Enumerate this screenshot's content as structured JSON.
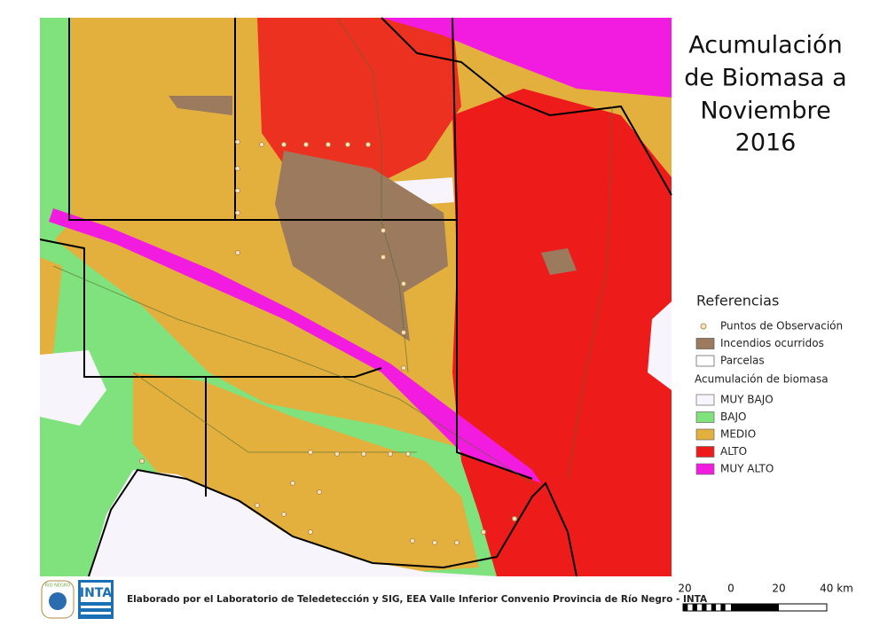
{
  "title": [
    "Acumulación",
    "de Biomasa a",
    "Noviembre",
    "2016"
  ],
  "legend": {
    "title": "Referencias",
    "items": [
      {
        "label": "Puntos de Observación",
        "symbol": "point"
      },
      {
        "label": "Incendios ocurridos",
        "symbol": "fire"
      },
      {
        "label": "Parcelas",
        "symbol": "parcel"
      }
    ],
    "subtitle": "Acumulación de biomasa",
    "classes": [
      {
        "label": "MUY BAJO",
        "color": "#f8f4fb"
      },
      {
        "label": "BAJO",
        "color": "#80e27c"
      },
      {
        "label": "MEDIO",
        "color": "#e3b03e"
      },
      {
        "label": "ALTO",
        "color": "#ee1b1b"
      },
      {
        "label": "MUY ALTO",
        "color": "#f21ce0"
      }
    ]
  },
  "footer": {
    "credit": "Elaborado por el Laboratorio de Teledetección y SIG, EEA Valle Inferior Convenio Provincia de Río Negro - INTA",
    "logo": "INTA",
    "seal": "RIO NEGRO"
  },
  "scale": {
    "labels": [
      "20",
      "0",
      "20",
      "40 km"
    ]
  }
}
